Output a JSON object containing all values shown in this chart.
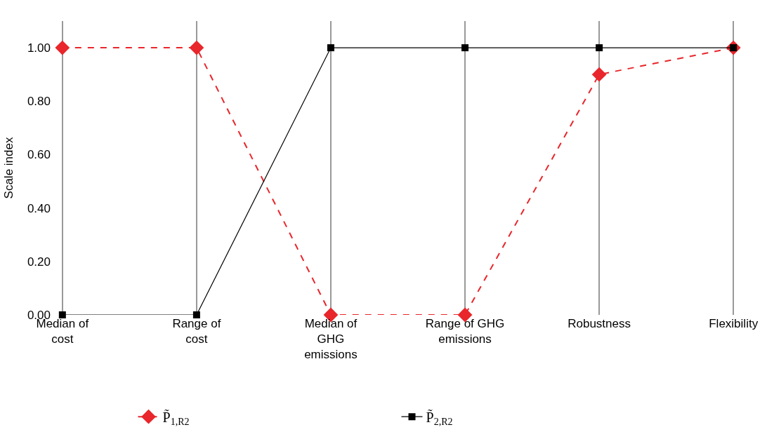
{
  "chart_data": {
    "type": "line",
    "ylabel": "Scale index",
    "categories": [
      "Median of cost",
      "Range of cost",
      "Median of GHG emissions",
      "Range of GHG emissions",
      "Robustness",
      "Flexibility"
    ],
    "series": [
      {
        "name": "P̃$_{1,R2}$",
        "color": "#e8262b",
        "values": [
          1,
          1,
          0,
          0,
          0.9,
          1
        ],
        "marker": "diamond",
        "line_style": "dashed"
      },
      {
        "name": "P̃$_{2,R2}$",
        "color": "#000000",
        "values": [
          0,
          0,
          1,
          1,
          1,
          1
        ],
        "marker": "square",
        "line_style": "solid"
      }
    ],
    "ylim": [
      0,
      1.1
    ],
    "yticks": [
      {
        "value": 0,
        "label": "0.00"
      },
      {
        "value": 0.2,
        "label": "0.20"
      },
      {
        "value": 0.4,
        "label": "0.40"
      },
      {
        "value": 0.6,
        "label": "0.60"
      },
      {
        "value": 0.8,
        "label": "0.80"
      },
      {
        "value": 1,
        "label": "1.00"
      }
    ],
    "grid": "x",
    "legend": "bottom"
  }
}
